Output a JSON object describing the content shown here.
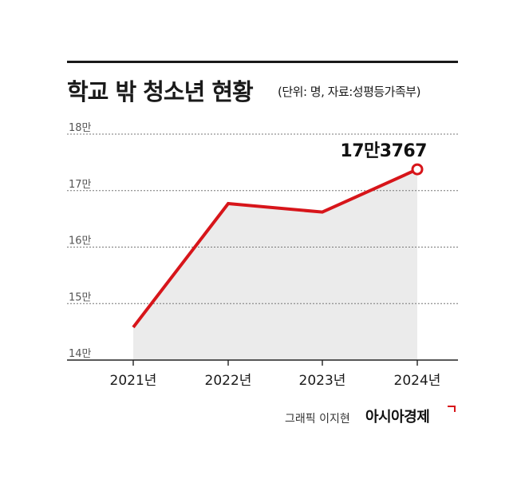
{
  "title": "학교 밖 청소년 현황",
  "subtitle": "(단위: 명, 자료:성평등가족부)",
  "credit": "그래픽 이지현",
  "brand": "아시아경제",
  "colors": {
    "line": "#d7151a",
    "area": "#ebebeb",
    "grid": "#777777",
    "text": "#1a1a1a"
  },
  "chart_data": {
    "type": "line",
    "title": "학교 밖 청소년 현황",
    "categories": [
      "2021년",
      "2022년",
      "2023년",
      "2024년"
    ],
    "values": [
      145800,
      167700,
      166200,
      173767
    ],
    "ylim": [
      140000,
      180000
    ],
    "yticks": [
      {
        "value": 140000,
        "label": "14만"
      },
      {
        "value": 150000,
        "label": "15만"
      },
      {
        "value": 160000,
        "label": "16만"
      },
      {
        "value": 170000,
        "label": "17만"
      },
      {
        "value": 180000,
        "label": "18만"
      }
    ],
    "annotations": [
      {
        "category": "2024년",
        "value": 173767,
        "text": "17만3767"
      }
    ],
    "grid": true,
    "area_fill": true
  }
}
